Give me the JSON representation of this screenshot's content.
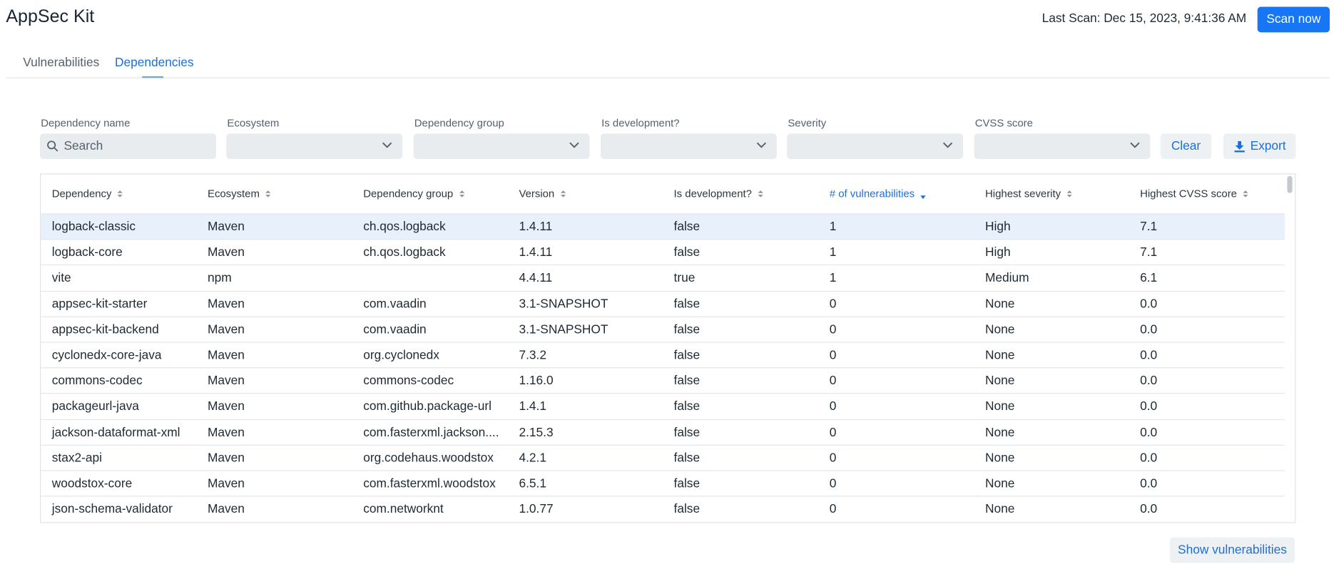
{
  "header": {
    "title": "AppSec Kit",
    "last_scan": "Last Scan: Dec 15, 2023, 9:41:36 AM",
    "scan_button": "Scan now"
  },
  "tabs": [
    "Vulnerabilities",
    "Dependencies"
  ],
  "filters": {
    "labels": [
      "Dependency name",
      "Ecosystem",
      "Dependency group",
      "Is development?",
      "Severity",
      "CVSS score"
    ],
    "search_placeholder": "Search",
    "clear": "Clear",
    "export": "Export"
  },
  "table": {
    "columns": [
      "Dependency",
      "Ecosystem",
      "Dependency group",
      "Version",
      "Is development?",
      "# of vulnerabilities",
      "Highest severity",
      "Highest CVSS score"
    ],
    "rows": [
      [
        "logback-classic",
        "Maven",
        "ch.qos.logback",
        "1.4.11",
        "false",
        "1",
        "High",
        "7.1"
      ],
      [
        "logback-core",
        "Maven",
        "ch.qos.logback",
        "1.4.11",
        "false",
        "1",
        "High",
        "7.1"
      ],
      [
        "vite",
        "npm",
        "",
        "4.4.11",
        "true",
        "1",
        "Medium",
        "6.1"
      ],
      [
        "appsec-kit-starter",
        "Maven",
        "com.vaadin",
        "3.1-SNAPSHOT",
        "false",
        "0",
        "None",
        "0.0"
      ],
      [
        "appsec-kit-backend",
        "Maven",
        "com.vaadin",
        "3.1-SNAPSHOT",
        "false",
        "0",
        "None",
        "0.0"
      ],
      [
        "cyclonedx-core-java",
        "Maven",
        "org.cyclonedx",
        "7.3.2",
        "false",
        "0",
        "None",
        "0.0"
      ],
      [
        "commons-codec",
        "Maven",
        "commons-codec",
        "1.16.0",
        "false",
        "0",
        "None",
        "0.0"
      ],
      [
        "packageurl-java",
        "Maven",
        "com.github.package-url",
        "1.4.1",
        "false",
        "0",
        "None",
        "0.0"
      ],
      [
        "jackson-dataformat-xml",
        "Maven",
        "com.fasterxml.jackson....",
        "2.15.3",
        "false",
        "0",
        "None",
        "0.0"
      ],
      [
        "stax2-api",
        "Maven",
        "org.codehaus.woodstox",
        "4.2.1",
        "false",
        "0",
        "None",
        "0.0"
      ],
      [
        "woodstox-core",
        "Maven",
        "com.fasterxml.woodstox",
        "6.5.1",
        "false",
        "0",
        "None",
        "0.0"
      ],
      [
        "json-schema-validator",
        "Maven",
        "com.networknt",
        "1.0.77",
        "false",
        "0",
        "None",
        "0.0"
      ]
    ]
  },
  "footer": {
    "button": "Show vulnerabilities"
  }
}
